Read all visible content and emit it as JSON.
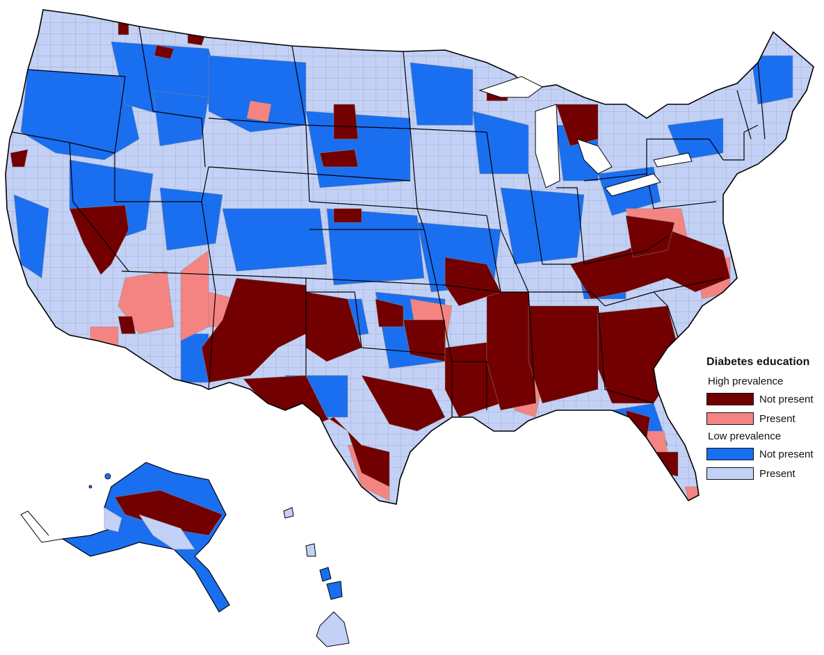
{
  "map": {
    "legend": {
      "title": "Diabetes education",
      "groups": [
        {
          "label": "High prevalence",
          "items": [
            {
              "label": "Not present",
              "color": "#720000"
            },
            {
              "label": "Present",
              "color": "#f48482"
            }
          ]
        },
        {
          "label": "Low prevalence",
          "items": [
            {
              "label": "Not present",
              "color": "#1a6ef0"
            },
            {
              "label": "Present",
              "color": "#c3d1f7"
            }
          ]
        }
      ]
    },
    "colors": {
      "high_not_present": "#720000",
      "high_present": "#f48482",
      "low_not_present": "#1a6ef0",
      "low_present": "#c3d1f7",
      "state_border": "#000000",
      "county_border": "#8a8a8a"
    }
  }
}
